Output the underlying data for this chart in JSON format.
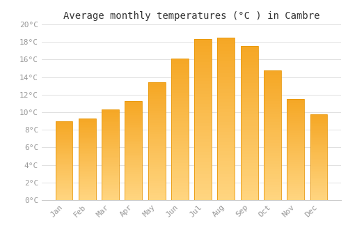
{
  "title": "Average monthly temperatures (°C ) in Cambre",
  "months": [
    "Jan",
    "Feb",
    "Mar",
    "Apr",
    "May",
    "Jun",
    "Jul",
    "Aug",
    "Sep",
    "Oct",
    "Nov",
    "Dec"
  ],
  "temperatures": [
    9.0,
    9.3,
    10.3,
    11.3,
    13.4,
    16.1,
    18.3,
    18.5,
    17.5,
    14.8,
    11.5,
    9.8
  ],
  "bar_color_top": "#F5A623",
  "bar_color_bottom": "#FFD580",
  "bar_edge_color": "#E8980A",
  "ylim": [
    0,
    20
  ],
  "ytick_step": 2,
  "background_color": "#FFFFFF",
  "grid_color": "#E0E0E0",
  "title_fontsize": 10,
  "tick_fontsize": 8,
  "tick_color": "#999999",
  "font_family": "monospace",
  "bar_width": 0.75
}
